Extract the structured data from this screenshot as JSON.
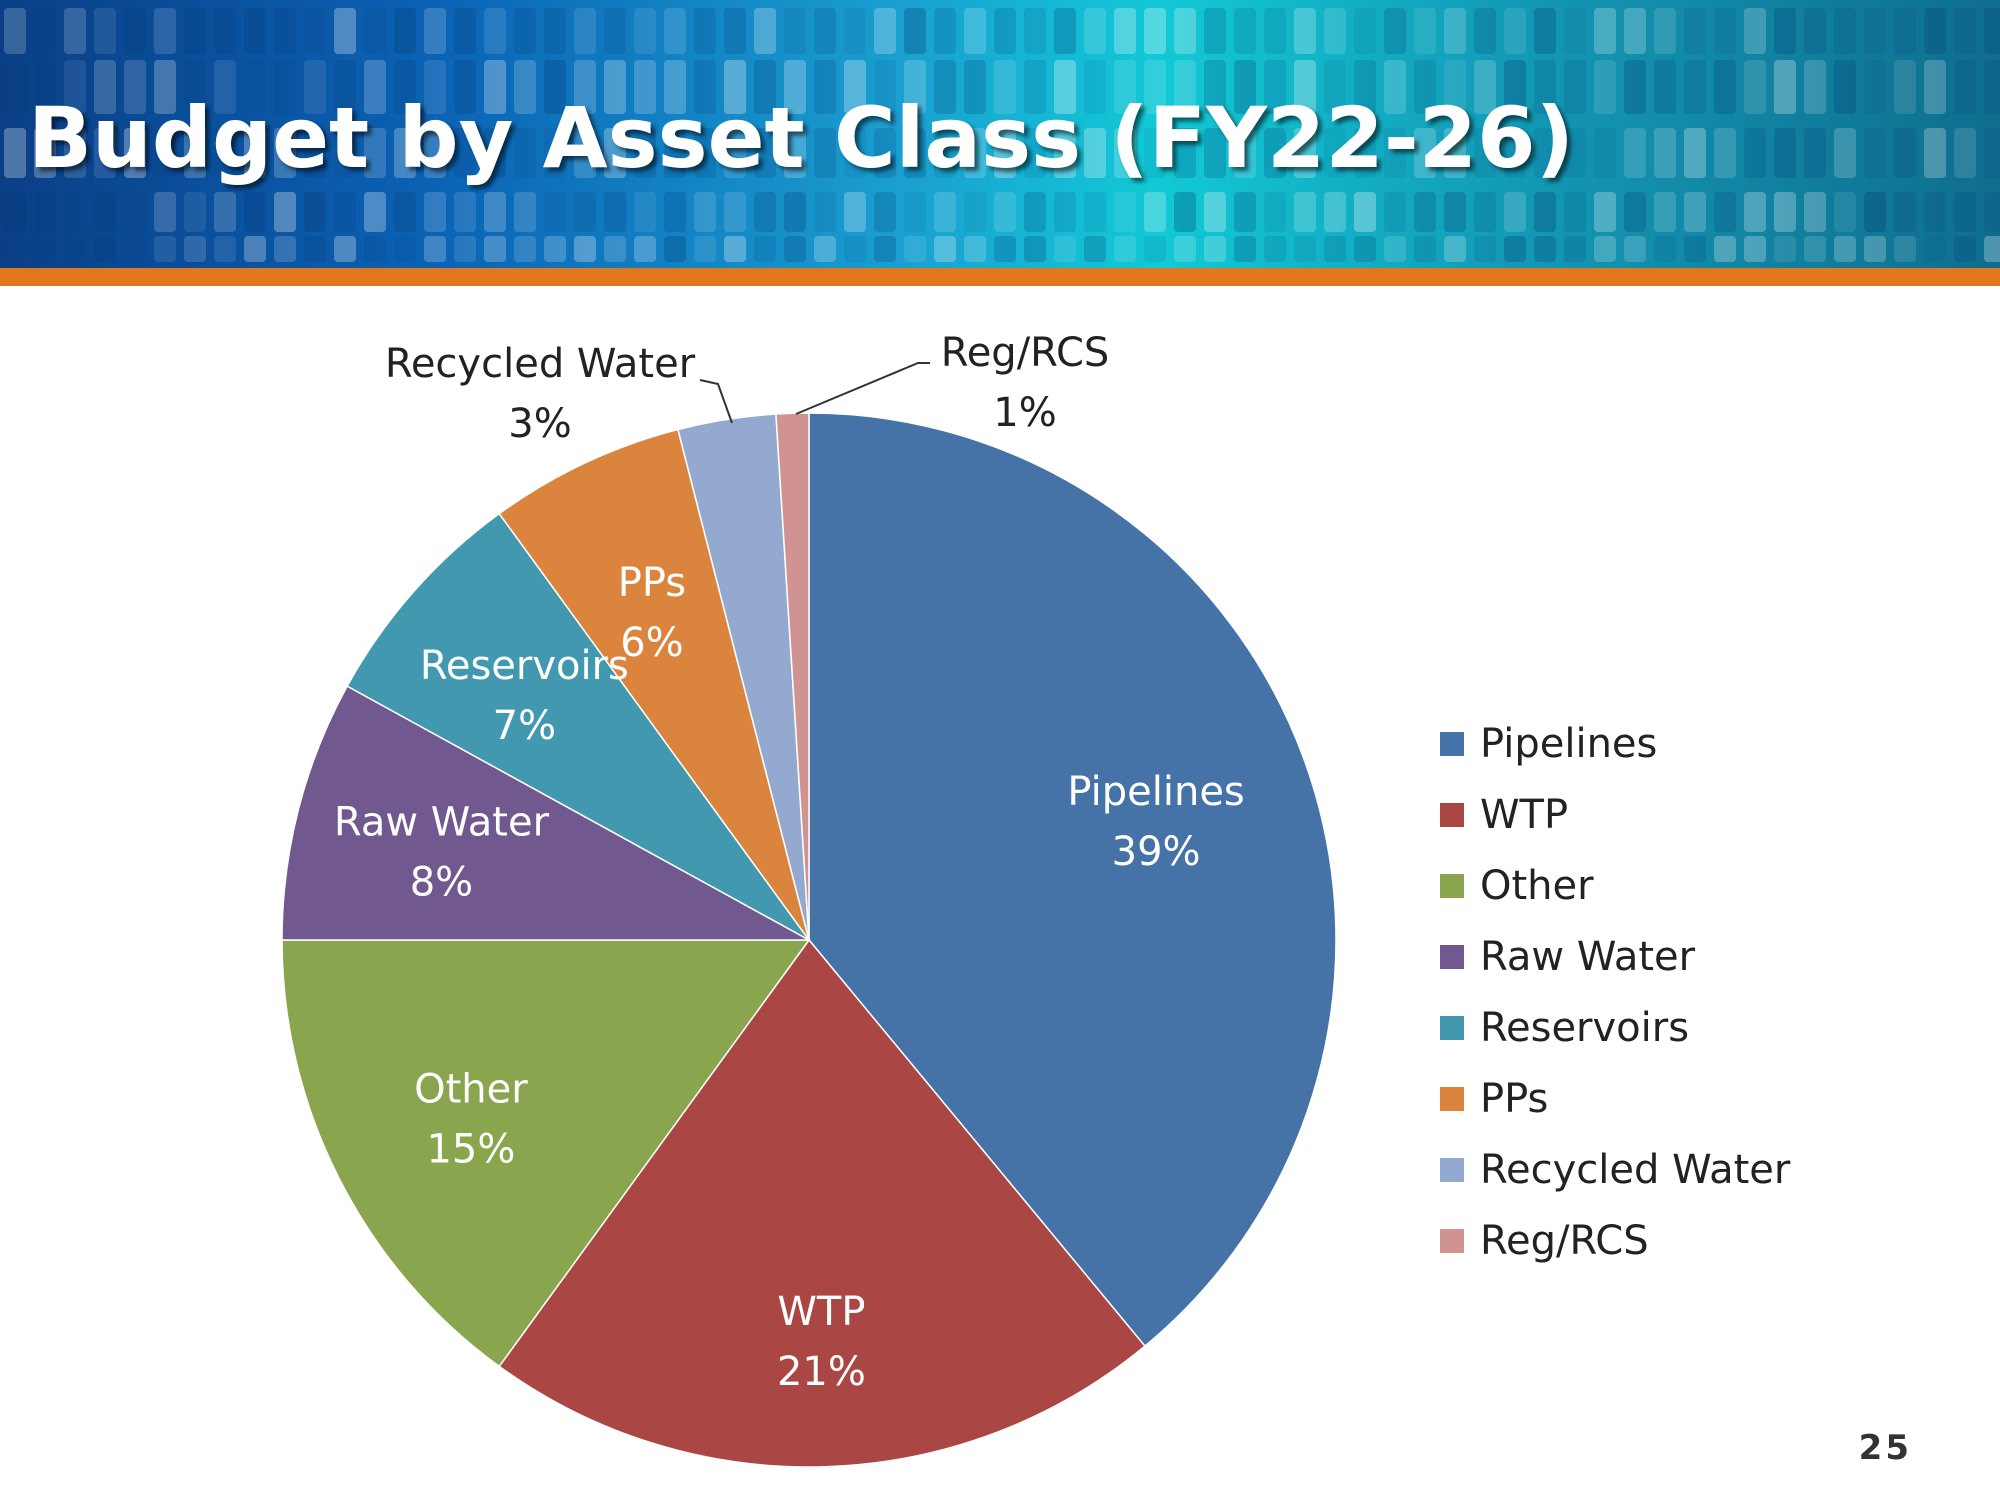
{
  "slide": {
    "title": "Budget by Asset Class (FY22-26)",
    "page_number": "25"
  },
  "colors": {
    "header_stripe": "#e3771d",
    "title_text": "#ffffff"
  },
  "chart_data": {
    "type": "pie",
    "legend_position": "right",
    "slices": [
      {
        "name": "Pipelines",
        "value": 39,
        "label": "39%",
        "color": "#4572a7"
      },
      {
        "name": "WTP",
        "value": 21,
        "label": "21%",
        "color": "#aa4643"
      },
      {
        "name": "Other",
        "value": 15,
        "label": "15%",
        "color": "#89a54e"
      },
      {
        "name": "Raw Water",
        "value": 8,
        "label": "8%",
        "color": "#71588f"
      },
      {
        "name": "Reservoirs",
        "value": 7,
        "label": "7%",
        "color": "#4198af"
      },
      {
        "name": "PPs",
        "value": 6,
        "label": "6%",
        "color": "#db843d"
      },
      {
        "name": "Recycled Water",
        "value": 3,
        "label": "3%",
        "color": "#93a9cf"
      },
      {
        "name": "Reg/RCS",
        "value": 1,
        "label": "1%",
        "color": "#d19392"
      }
    ]
  }
}
